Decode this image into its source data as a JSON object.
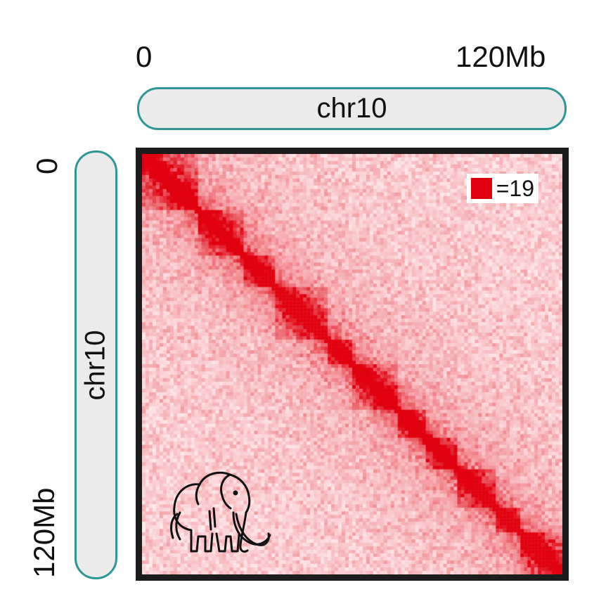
{
  "chart_data": {
    "type": "heatmap",
    "title": "",
    "x_axis": {
      "label": "chr10",
      "tick_labels": [
        "0",
        "120Mb"
      ],
      "range": [
        0,
        120
      ]
    },
    "y_axis": {
      "label": "chr10",
      "tick_labels": [
        "0",
        "120Mb"
      ],
      "range": [
        0,
        120
      ]
    },
    "max_value": 19,
    "legend": {
      "label": "=19",
      "position": "top-right"
    },
    "diagonal_domain_boundaries_mb": [
      0,
      16,
      29,
      38,
      53,
      60,
      73,
      81,
      90,
      101,
      108,
      120
    ],
    "matrix_bins": 120,
    "colormap": [
      "#ffffff",
      "#e1000f"
    ]
  },
  "colors": {
    "accent": "#2e9696",
    "heat": "#e1000f",
    "bar_fill": "#ebebeb",
    "frame": "#1c1c1c"
  },
  "icon": "mammoth-icon"
}
